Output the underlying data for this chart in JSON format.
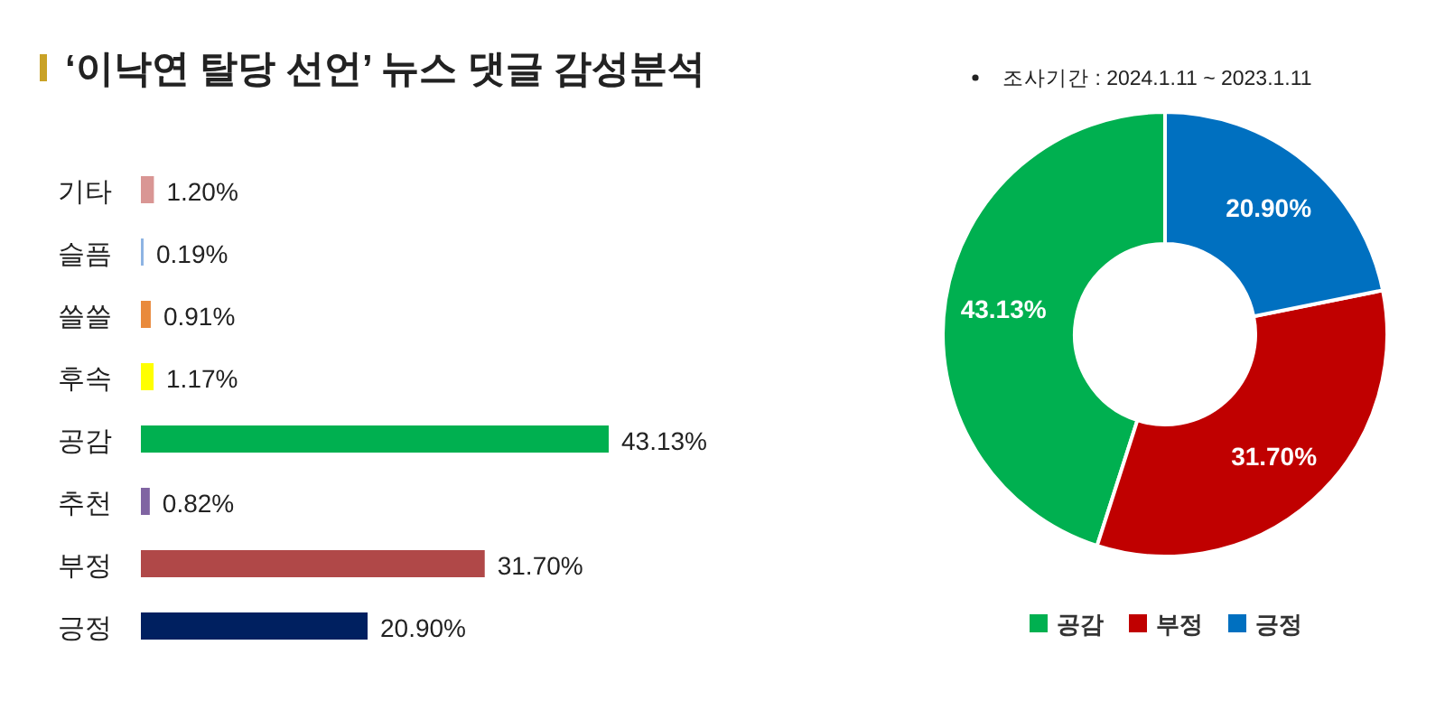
{
  "chart_data": [
    {
      "type": "bar",
      "orientation": "horizontal",
      "title": "‘이낙연 탈당 선언’ 뉴스 댓글 감성분석",
      "categories": [
        "기타",
        "슬픔",
        "쓸쓸",
        "후속",
        "공감",
        "추천",
        "부정",
        "긍정"
      ],
      "values": [
        1.2,
        0.19,
        0.91,
        1.17,
        43.13,
        0.82,
        31.7,
        20.9
      ],
      "colors": [
        "#d99694",
        "#8eb4e3",
        "#e98a3c",
        "#ffff00",
        "#00b050",
        "#8064a2",
        "#b04848",
        "#002060"
      ],
      "value_labels": [
        "1.20%",
        "0.19%",
        "0.91%",
        "1.17%",
        "43.13%",
        "0.82%",
        "31.70%",
        "20.90%"
      ],
      "legend": false
    },
    {
      "type": "donut",
      "annotations": [
        "조사기간 : 2024.1.11 ~ 2023.1.11"
      ],
      "categories": [
        "공감",
        "부정",
        "긍정"
      ],
      "values": [
        43.13,
        31.7,
        20.9
      ],
      "colors": [
        "#00b050",
        "#c00000",
        "#0070c0"
      ],
      "value_labels": [
        "43.13%",
        "31.70%",
        "20.90%"
      ],
      "legend": "bottom"
    }
  ]
}
